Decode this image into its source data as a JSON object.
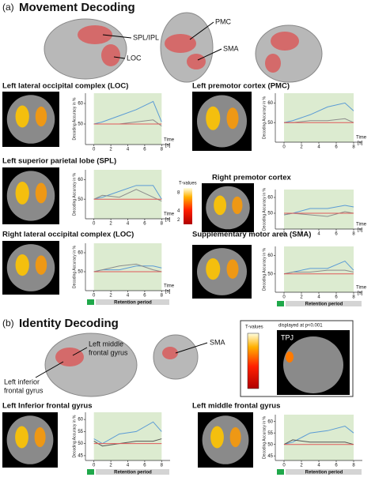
{
  "panel_a": {
    "label": "(a)",
    "title": "Movement Decoding",
    "regions": [
      "SPL/IPL",
      "LOC",
      "PMC",
      "SMA"
    ],
    "colorbar": {
      "title": "T-values",
      "ticks": [
        8,
        4,
        2
      ],
      "lim": [
        1,
        9
      ]
    }
  },
  "panel_b": {
    "label": "(b)",
    "title": "Identity Decoding",
    "regions": [
      [
        "Left middle",
        "frontal gyrus"
      ],
      [
        "Left inferior",
        "frontal gyrus"
      ],
      [
        "SMA"
      ]
    ],
    "colorbar": {
      "title": "T-values",
      "note": "displayed at p<0.001",
      "roi": "TPJ"
    }
  },
  "chart_data": [
    {
      "type": "line",
      "title": "Left lateral occipital complex (LOC)",
      "ylabel": "Decoding Accuracy in %",
      "xlabel": "Time",
      "xunit": "[s]",
      "x": [
        0,
        1,
        3,
        5,
        7,
        8
      ],
      "xlim": [
        -1,
        9
      ],
      "xticks": [
        0,
        2,
        4,
        6,
        8
      ],
      "ylim": [
        40,
        65
      ],
      "yticks": [
        50,
        60
      ],
      "shade": [
        0,
        8
      ],
      "series": [
        {
          "color": "#5b9bd5",
          "values": [
            50,
            51,
            54,
            57,
            61,
            51
          ]
        },
        {
          "color": "#8c8c8c",
          "values": [
            50,
            50,
            50,
            51,
            52,
            49
          ]
        },
        {
          "color": "#e05a5a",
          "values": [
            50,
            50,
            50,
            50,
            50,
            50
          ]
        }
      ]
    },
    {
      "type": "line",
      "title": "Left premotor cortex (PMC)",
      "ylabel": "Decoding Accuracy in %",
      "xlabel": "Time",
      "xunit": "[s]",
      "x": [
        0,
        1,
        3,
        5,
        7,
        8
      ],
      "xlim": [
        -1,
        9
      ],
      "xticks": [
        0,
        2,
        4,
        6,
        8
      ],
      "ylim": [
        40,
        65
      ],
      "yticks": [
        50,
        60
      ],
      "shade": [
        0,
        8
      ],
      "series": [
        {
          "color": "#5b9bd5",
          "values": [
            50,
            51,
            54,
            58,
            60,
            56
          ]
        },
        {
          "color": "#8c8c8c",
          "values": [
            50,
            50,
            51,
            51,
            52,
            50
          ]
        },
        {
          "color": "#e05a5a",
          "values": [
            50,
            50,
            50,
            50,
            50,
            50
          ]
        }
      ]
    },
    {
      "type": "line",
      "title": "Left superior parietal lobe (SPL)",
      "ylabel": "Decoding Accuracy in %",
      "xlabel": "Time",
      "xunit": "[s]",
      "x": [
        0,
        1,
        3,
        5,
        7,
        8
      ],
      "xlim": [
        -1,
        9
      ],
      "xticks": [
        0,
        2,
        4,
        6,
        8
      ],
      "ylim": [
        40,
        65
      ],
      "yticks": [
        50,
        60
      ],
      "shade": [
        0,
        8
      ],
      "series": [
        {
          "color": "#5b9bd5",
          "values": [
            50,
            51,
            54,
            57,
            57,
            50
          ]
        },
        {
          "color": "#8c8c8c",
          "values": [
            50,
            52,
            51,
            55,
            51,
            49
          ]
        },
        {
          "color": "#e05a5a",
          "values": [
            50,
            50,
            50,
            50,
            50,
            50
          ]
        }
      ]
    },
    {
      "type": "line",
      "title": "Right premotor cortex",
      "ylabel": "Decoding Accuracy in %",
      "xlabel": "Time",
      "xunit": "[s]",
      "x": [
        0,
        1,
        3,
        5,
        7,
        8
      ],
      "xlim": [
        -1,
        9
      ],
      "xticks": [
        0,
        2,
        4,
        6,
        8
      ],
      "ylim": [
        40,
        65
      ],
      "yticks": [
        50,
        60
      ],
      "shade": [
        0,
        8
      ],
      "series": [
        {
          "color": "#5b9bd5",
          "values": [
            49,
            50,
            53,
            53,
            55,
            54
          ]
        },
        {
          "color": "#8c8c8c",
          "values": [
            49,
            50,
            49,
            48,
            51,
            50
          ]
        },
        {
          "color": "#e05a5a",
          "values": [
            50,
            50,
            50,
            50,
            50,
            50
          ]
        }
      ]
    },
    {
      "type": "line",
      "title": "Right lateral occipital complex (LOC)",
      "ylabel": "Decoding Accuracy in %",
      "xlabel": "Time",
      "xunit": "[s]",
      "retention_label": "Retention period",
      "x": [
        0,
        1,
        3,
        5,
        7,
        8
      ],
      "xlim": [
        -1,
        9
      ],
      "xticks": [
        0,
        2,
        4,
        6,
        8
      ],
      "ylim": [
        40,
        65
      ],
      "yticks": [
        50,
        60
      ],
      "shade": [
        0,
        8
      ],
      "series": [
        {
          "color": "#5b9bd5",
          "values": [
            50,
            51,
            51,
            53,
            53,
            52
          ]
        },
        {
          "color": "#8c8c8c",
          "values": [
            50,
            51,
            53,
            54,
            51,
            50
          ]
        },
        {
          "color": "#e05a5a",
          "values": [
            50,
            50,
            50,
            50,
            50,
            50
          ]
        }
      ]
    },
    {
      "type": "line",
      "title": "Supplementary motor area (SMA)",
      "ylabel": "Decoding Accuracy in %",
      "xlabel": "Time",
      "xunit": "[s]",
      "retention_label": "Retention period",
      "x": [
        0,
        1,
        3,
        5,
        7,
        8
      ],
      "xlim": [
        -1,
        9
      ],
      "xticks": [
        0,
        2,
        4,
        6,
        8
      ],
      "ylim": [
        40,
        65
      ],
      "yticks": [
        50,
        60
      ],
      "shade": [
        0,
        8
      ],
      "series": [
        {
          "color": "#5b9bd5",
          "values": [
            50,
            51,
            53,
            53,
            57,
            52
          ]
        },
        {
          "color": "#8c8c8c",
          "values": [
            50,
            51,
            51,
            52,
            52,
            51
          ]
        },
        {
          "color": "#e05a5a",
          "values": [
            50,
            50,
            50,
            50,
            50,
            50
          ]
        }
      ]
    },
    {
      "type": "line",
      "title": "Left Inferior frontal gyrus",
      "ylabel": "Decoding Accuracy in %",
      "retention_label": "Retention period",
      "x": [
        0,
        1,
        3,
        5,
        7,
        8
      ],
      "xlim": [
        -1,
        9
      ],
      "xticks": [
        0,
        2,
        4,
        6,
        8
      ],
      "ylim": [
        43,
        63
      ],
      "yticks": [
        45,
        50,
        55,
        60
      ],
      "shade": [
        0,
        8
      ],
      "series": [
        {
          "color": "#5b9bd5",
          "values": [
            52,
            50,
            54,
            55,
            59,
            55
          ]
        },
        {
          "color": "#555555",
          "values": [
            51,
            49,
            50,
            51,
            51,
            52
          ]
        },
        {
          "color": "#e05a5a",
          "values": [
            50,
            50,
            50,
            50,
            50,
            50
          ]
        }
      ]
    },
    {
      "type": "line",
      "title": "Left middle frontal gyrus",
      "ylabel": "Decoding Accuracy in %",
      "retention_label": "Retention period",
      "x": [
        0,
        1,
        3,
        5,
        7,
        8
      ],
      "xlim": [
        -1,
        9
      ],
      "xticks": [
        0,
        2,
        4,
        6,
        8
      ],
      "ylim": [
        43,
        63
      ],
      "yticks": [
        45,
        50,
        55,
        60
      ],
      "shade": [
        0,
        8
      ],
      "series": [
        {
          "color": "#5b9bd5",
          "values": [
            50,
            51,
            55,
            56,
            58,
            55
          ]
        },
        {
          "color": "#555555",
          "values": [
            50,
            52,
            51,
            51,
            51,
            50
          ]
        },
        {
          "color": "#e05a5a",
          "values": [
            50,
            50,
            50,
            50,
            50,
            50
          ]
        }
      ]
    }
  ]
}
